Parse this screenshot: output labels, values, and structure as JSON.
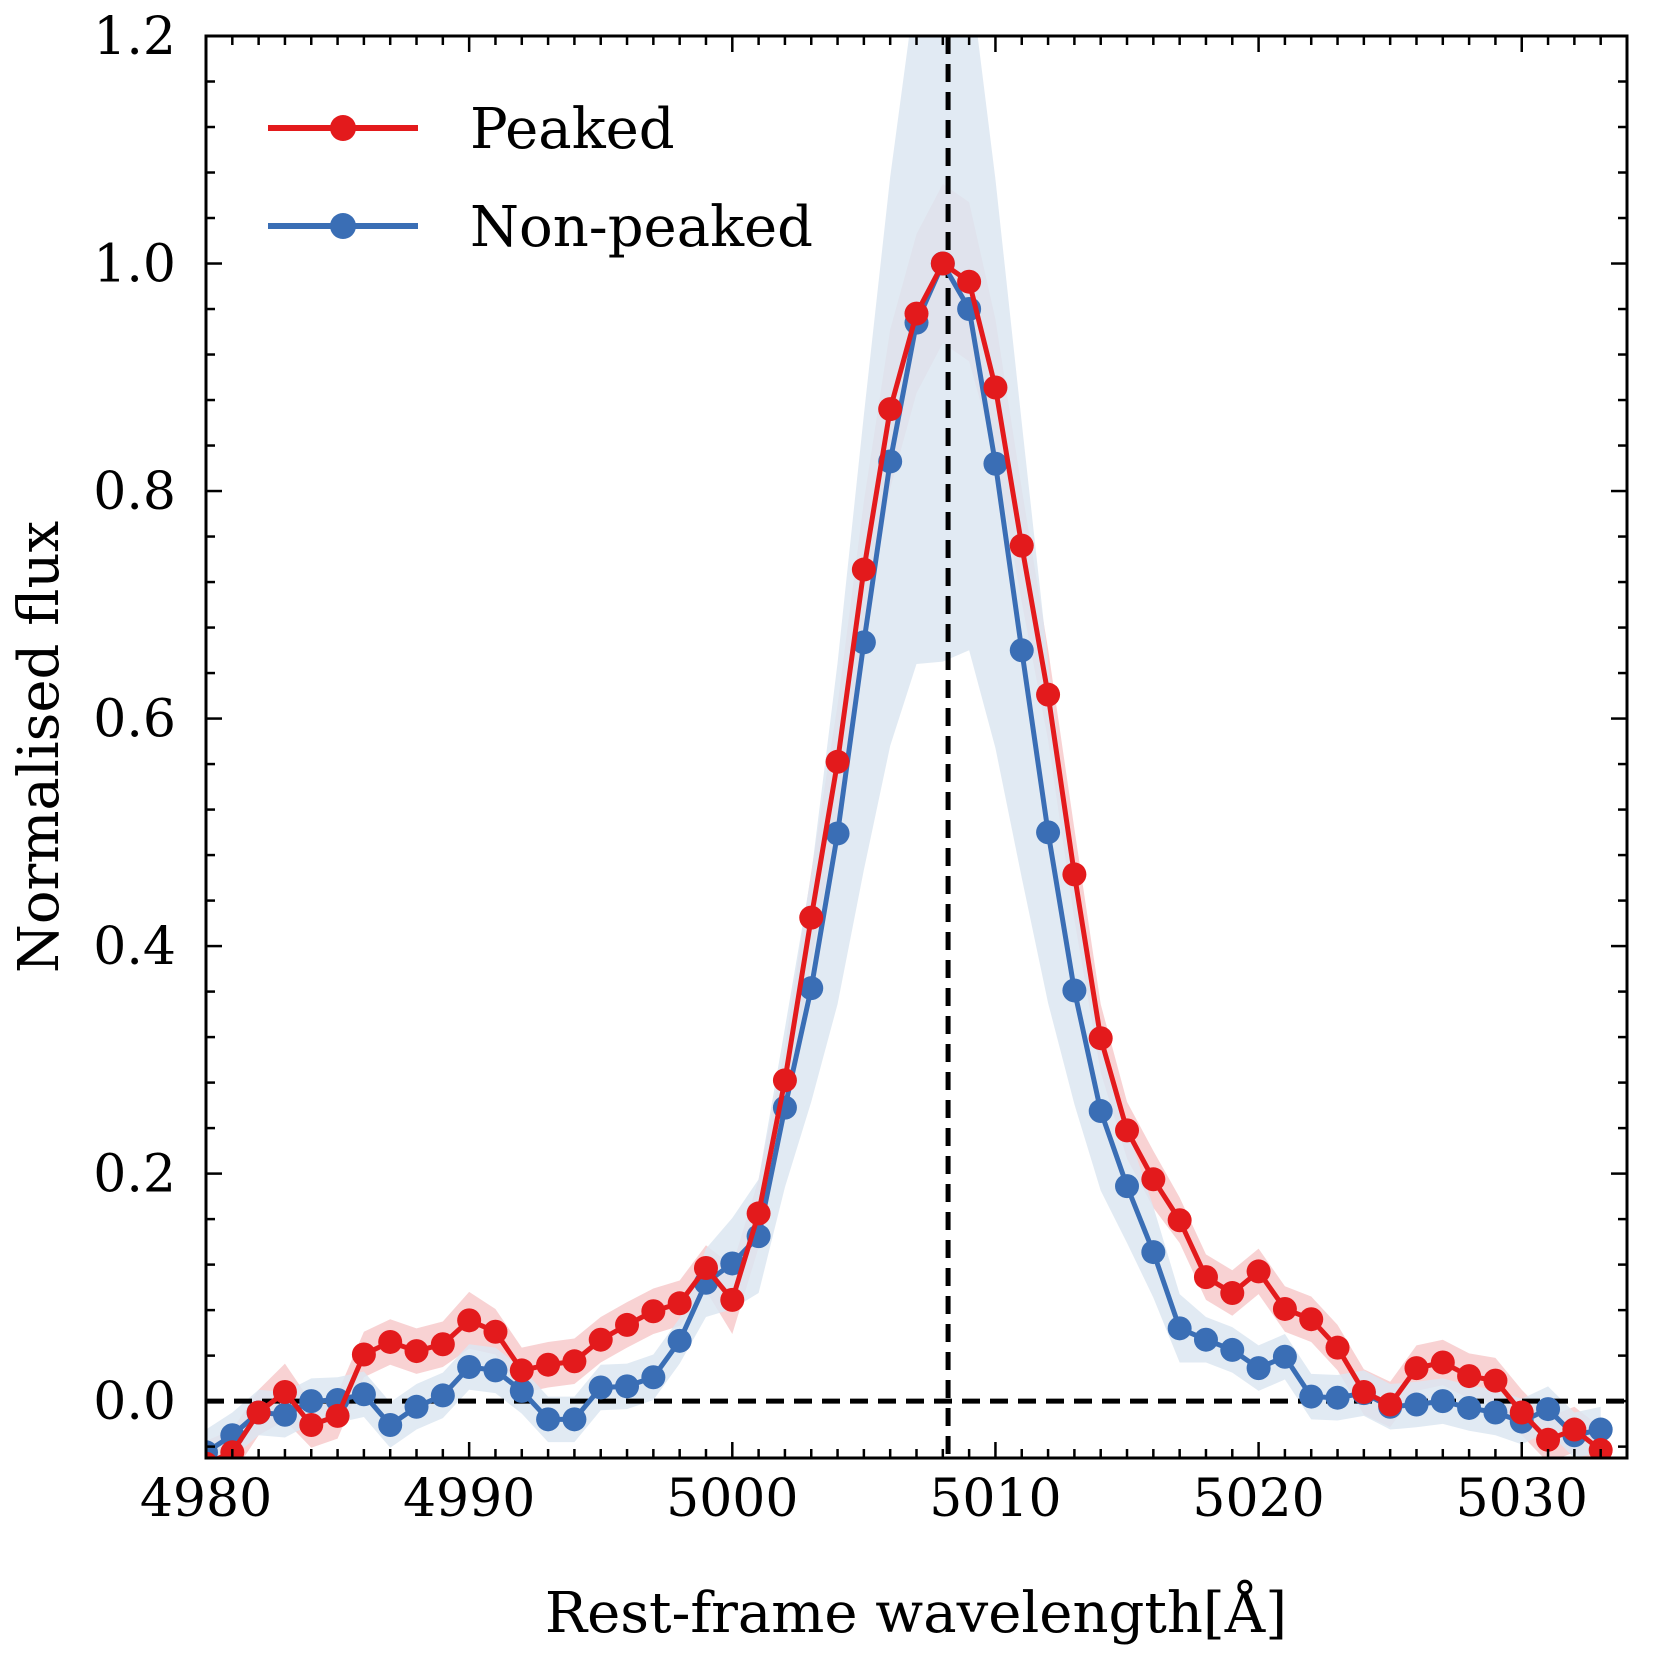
{
  "chart_data": {
    "type": "line",
    "xlabel": "Rest-frame wavelength[Å]",
    "ylabel": "Normalised flux",
    "xlim": [
      4980,
      5034
    ],
    "ylim": [
      -0.05,
      1.2
    ],
    "xticks": [
      4980,
      4990,
      5000,
      5010,
      5020,
      5030
    ],
    "yticks": [
      0.0,
      0.2,
      0.4,
      0.6,
      0.8,
      1.0,
      1.2
    ],
    "ytick_labels": [
      "0.0",
      "0.2",
      "0.4",
      "0.6",
      "0.8",
      "1.0",
      "1.2"
    ],
    "reference_lines": {
      "vertical_x": 5008.2,
      "horizontal_y": 0.0
    },
    "legend_position": "top-left",
    "x": [
      4980,
      4981,
      4982,
      4983,
      4984,
      4985,
      4986,
      4987,
      4988,
      4989,
      4990,
      4991,
      4992,
      4993,
      4994,
      4995,
      4996,
      4997,
      4998,
      4999,
      5000,
      5001,
      5002,
      5003,
      5004,
      5005,
      5006,
      5007,
      5008,
      5009,
      5010,
      5011,
      5012,
      5013,
      5014,
      5015,
      5016,
      5017,
      5018,
      5019,
      5020,
      5021,
      5022,
      5023,
      5024,
      5025,
      5026,
      5027,
      5028,
      5029,
      5030,
      5031,
      5032,
      5033
    ],
    "series": [
      {
        "name": "Peaked",
        "color": "#e31a1c",
        "band_color": "#f4b4b5",
        "values": [
          -0.055,
          -0.045,
          -0.01,
          0.008,
          -0.021,
          -0.013,
          0.041,
          0.052,
          0.044,
          0.05,
          0.071,
          0.061,
          0.027,
          0.032,
          0.035,
          0.054,
          0.067,
          0.079,
          0.086,
          0.117,
          0.089,
          0.165,
          0.282,
          0.425,
          0.562,
          0.731,
          0.872,
          0.956,
          1.0,
          0.984,
          0.891,
          0.752,
          0.621,
          0.463,
          0.319,
          0.238,
          0.195,
          0.159,
          0.109,
          0.095,
          0.114,
          0.081,
          0.072,
          0.047,
          0.008,
          -0.003,
          0.029,
          0.034,
          0.022,
          0.018,
          -0.01,
          -0.034,
          -0.025,
          -0.043
        ],
        "band_halfwidth": [
          0.02,
          0.02,
          0.02,
          0.025,
          0.02,
          0.02,
          0.02,
          0.02,
          0.02,
          0.02,
          0.025,
          0.02,
          0.02,
          0.02,
          0.02,
          0.02,
          0.02,
          0.02,
          0.02,
          0.02,
          0.03,
          0.03,
          0.03,
          0.04,
          0.05,
          0.06,
          0.07,
          0.07,
          0.07,
          0.07,
          0.06,
          0.05,
          0.04,
          0.04,
          0.03,
          0.025,
          0.025,
          0.02,
          0.02,
          0.02,
          0.02,
          0.02,
          0.02,
          0.02,
          0.02,
          0.02,
          0.02,
          0.02,
          0.02,
          0.02,
          0.02,
          0.02,
          0.02,
          0.02
        ]
      },
      {
        "name": "Non-peaked",
        "color": "#3a6eb5",
        "band_color": "#dce6f1",
        "values": [
          -0.045,
          -0.03,
          -0.01,
          -0.012,
          0.0,
          0.001,
          0.006,
          -0.021,
          -0.005,
          0.005,
          0.03,
          0.027,
          0.009,
          -0.016,
          -0.016,
          0.012,
          0.013,
          0.021,
          0.053,
          0.104,
          0.121,
          0.145,
          0.258,
          0.363,
          0.499,
          0.667,
          0.826,
          0.948,
          1.0,
          0.96,
          0.824,
          0.66,
          0.5,
          0.361,
          0.255,
          0.189,
          0.131,
          0.064,
          0.054,
          0.045,
          0.029,
          0.039,
          0.004,
          0.003,
          0.007,
          -0.005,
          -0.003,
          0.0,
          -0.006,
          -0.01,
          -0.018,
          -0.007,
          -0.03,
          -0.025
        ],
        "band_halfwidth": [
          0.02,
          0.02,
          0.02,
          0.02,
          0.02,
          0.02,
          0.02,
          0.02,
          0.02,
          0.02,
          0.02,
          0.02,
          0.02,
          0.02,
          0.02,
          0.02,
          0.02,
          0.02,
          0.02,
          0.03,
          0.04,
          0.05,
          0.07,
          0.1,
          0.15,
          0.2,
          0.25,
          0.3,
          0.35,
          0.3,
          0.25,
          0.2,
          0.15,
          0.1,
          0.07,
          0.05,
          0.04,
          0.03,
          0.02,
          0.02,
          0.02,
          0.02,
          0.02,
          0.02,
          0.02,
          0.02,
          0.02,
          0.02,
          0.02,
          0.02,
          0.02,
          0.02,
          0.02,
          0.02
        ]
      }
    ]
  }
}
